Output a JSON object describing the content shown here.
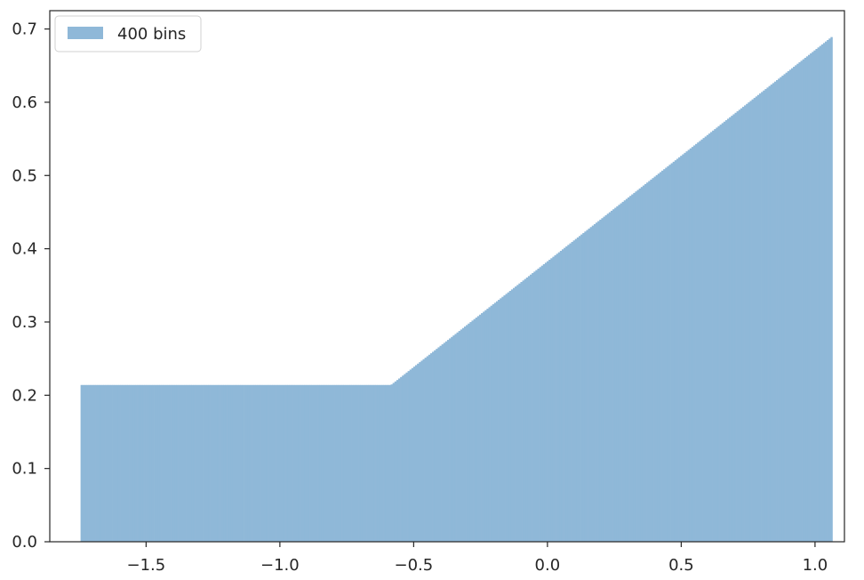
{
  "chart_data": {
    "type": "bar",
    "subtype": "histogram",
    "title": "",
    "xlabel": "",
    "ylabel": "",
    "xlim": [
      -1.86,
      1.11
    ],
    "ylim": [
      0.0,
      0.725
    ],
    "grid": false,
    "legend_position": "top-left",
    "color": "#8fb8d8",
    "series": [
      {
        "name": "400 bins",
        "bins": 400,
        "x_range": [
          -1.745,
          1.065
        ],
        "segments": [
          {
            "x_start": -1.745,
            "x_end": -0.585,
            "y_start": 0.214,
            "y_end": 0.214
          },
          {
            "x_start": -0.585,
            "x_end": 1.065,
            "y_start": 0.214,
            "y_end": 0.69
          }
        ]
      }
    ],
    "x_ticks": [
      "−1.5",
      "−1.0",
      "−0.5",
      "0.0",
      "0.5",
      "1.0"
    ],
    "x_tick_values": [
      -1.5,
      -1.0,
      -0.5,
      0.0,
      0.5,
      1.0
    ],
    "y_ticks": [
      "0.0",
      "0.1",
      "0.2",
      "0.3",
      "0.4",
      "0.5",
      "0.6",
      "0.7"
    ],
    "y_tick_values": [
      0.0,
      0.1,
      0.2,
      0.3,
      0.4,
      0.5,
      0.6,
      0.7
    ]
  }
}
